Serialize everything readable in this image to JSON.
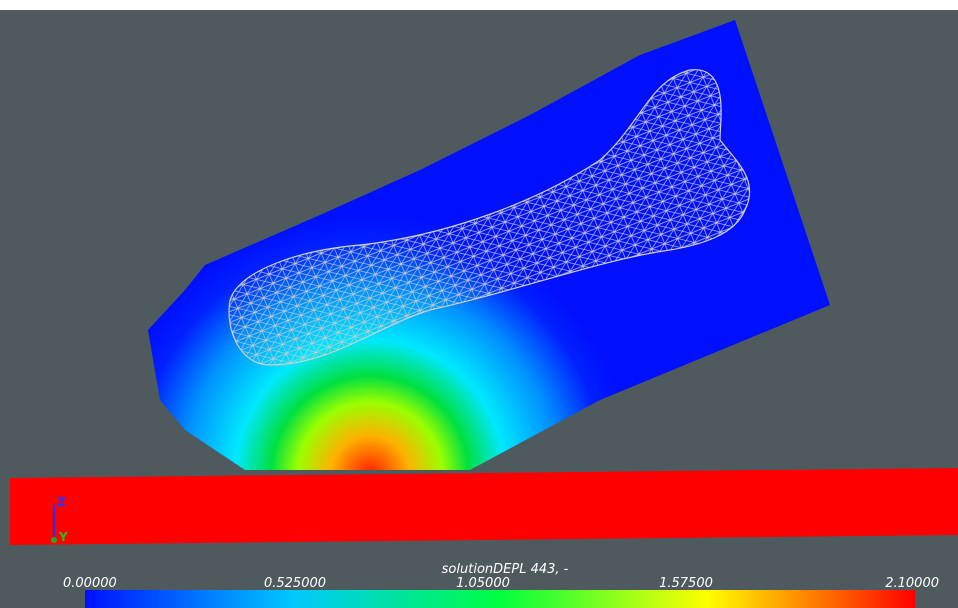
{
  "colorbar": {
    "title": "solutionDEPL 443, -",
    "labels": [
      "0.00000",
      "0.525000",
      "1.05000",
      "1.57500",
      "2.10000"
    ]
  },
  "axes": {
    "z": "Z",
    "y": "Y"
  }
}
